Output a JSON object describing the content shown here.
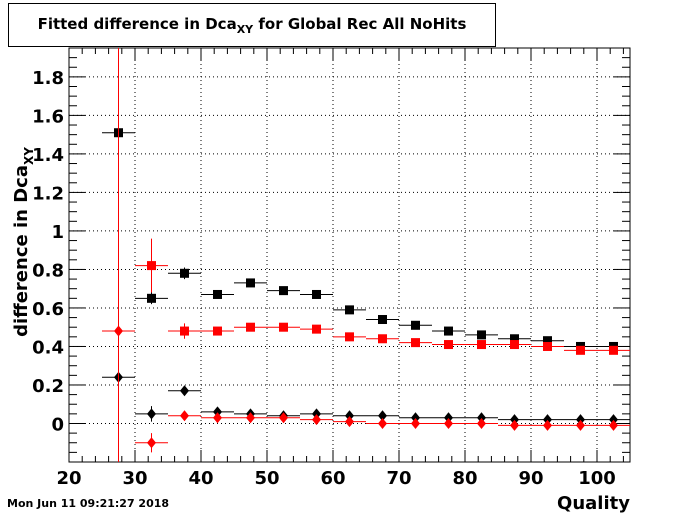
{
  "title": {
    "main": "Fitted difference in Dca",
    "sub": "XY",
    "rest": " for Global Rec All NoHits"
  },
  "timestamp": "Mon Jun 11 09:21:27 2018",
  "colors": {
    "black": "#000000",
    "red": "#ff0000"
  },
  "chart_data": {
    "type": "scatter",
    "xlabel": "Quality",
    "ylabel": "difference in Dca",
    "ylabel_sub": "XY",
    "xlim": [
      20,
      105
    ],
    "ylim": [
      -0.2,
      1.95
    ],
    "xticks": [
      20,
      30,
      40,
      50,
      60,
      70,
      80,
      90,
      100
    ],
    "yticks": [
      0,
      0.2,
      0.4,
      0.6,
      0.8,
      1,
      1.2,
      1.4,
      1.6,
      1.8
    ],
    "grid": true,
    "series": [
      {
        "color": "#000000",
        "marker": "square",
        "points": [
          {
            "x": 27.5,
            "y": 1.51,
            "err": 0
          },
          {
            "x": 32.5,
            "y": 0.65,
            "err": 0.03
          },
          {
            "x": 37.5,
            "y": 0.78,
            "err": 0.03
          },
          {
            "x": 42.5,
            "y": 0.67,
            "err": 0.02
          },
          {
            "x": 47.5,
            "y": 0.73,
            "err": 0.015
          },
          {
            "x": 52.5,
            "y": 0.69,
            "err": 0.01
          },
          {
            "x": 57.5,
            "y": 0.67,
            "err": 0.01
          },
          {
            "x": 62.5,
            "y": 0.59,
            "err": 0.01
          },
          {
            "x": 67.5,
            "y": 0.54,
            "err": 0.01
          },
          {
            "x": 72.5,
            "y": 0.51,
            "err": 0.01
          },
          {
            "x": 77.5,
            "y": 0.48,
            "err": 0.01
          },
          {
            "x": 82.5,
            "y": 0.46,
            "err": 0.01
          },
          {
            "x": 87.5,
            "y": 0.44,
            "err": 0.01
          },
          {
            "x": 92.5,
            "y": 0.43,
            "err": 0.01
          },
          {
            "x": 97.5,
            "y": 0.4,
            "err": 0.01
          },
          {
            "x": 102.5,
            "y": 0.4,
            "err": 0.01
          }
        ]
      },
      {
        "color": "#ff0000",
        "marker": "square",
        "points": [
          {
            "x": 32.5,
            "y": 0.82,
            "err": 0.14
          },
          {
            "x": 37.5,
            "y": 0.48,
            "err": 0.04
          },
          {
            "x": 42.5,
            "y": 0.48,
            "err": 0.02
          },
          {
            "x": 47.5,
            "y": 0.5,
            "err": 0.015
          },
          {
            "x": 52.5,
            "y": 0.5,
            "err": 0.01
          },
          {
            "x": 57.5,
            "y": 0.49,
            "err": 0.01
          },
          {
            "x": 62.5,
            "y": 0.45,
            "err": 0.01
          },
          {
            "x": 67.5,
            "y": 0.44,
            "err": 0.01
          },
          {
            "x": 72.5,
            "y": 0.42,
            "err": 0.01
          },
          {
            "x": 77.5,
            "y": 0.41,
            "err": 0.01
          },
          {
            "x": 82.5,
            "y": 0.41,
            "err": 0.01
          },
          {
            "x": 87.5,
            "y": 0.41,
            "err": 0.01
          },
          {
            "x": 92.5,
            "y": 0.4,
            "err": 0.01
          },
          {
            "x": 97.5,
            "y": 0.38,
            "err": 0.01
          },
          {
            "x": 102.5,
            "y": 0.38,
            "err": 0.01
          }
        ]
      },
      {
        "color": "#000000",
        "marker": "diamond",
        "points": [
          {
            "x": 27.5,
            "y": 0.24,
            "err": 0
          },
          {
            "x": 32.5,
            "y": 0.05,
            "err": 0.04
          },
          {
            "x": 37.5,
            "y": 0.17,
            "err": 0.02
          },
          {
            "x": 42.5,
            "y": 0.06,
            "err": 0.01
          },
          {
            "x": 47.5,
            "y": 0.05,
            "err": 0.01
          },
          {
            "x": 52.5,
            "y": 0.04,
            "err": 0.01
          },
          {
            "x": 57.5,
            "y": 0.05,
            "err": 0.01
          },
          {
            "x": 62.5,
            "y": 0.04,
            "err": 0.01
          },
          {
            "x": 67.5,
            "y": 0.04,
            "err": 0.01
          },
          {
            "x": 72.5,
            "y": 0.03,
            "err": 0.01
          },
          {
            "x": 77.5,
            "y": 0.03,
            "err": 0.01
          },
          {
            "x": 82.5,
            "y": 0.03,
            "err": 0.01
          },
          {
            "x": 87.5,
            "y": 0.02,
            "err": 0.01
          },
          {
            "x": 92.5,
            "y": 0.02,
            "err": 0.01
          },
          {
            "x": 97.5,
            "y": 0.02,
            "err": 0.01
          },
          {
            "x": 102.5,
            "y": 0.02,
            "err": 0.01
          }
        ]
      },
      {
        "color": "#ff0000",
        "marker": "diamond",
        "points": [
          {
            "x": 27.5,
            "y": 0.48,
            "err": 9
          },
          {
            "x": 32.5,
            "y": -0.1,
            "err": 0.05
          },
          {
            "x": 37.5,
            "y": 0.04,
            "err": 0.02
          },
          {
            "x": 42.5,
            "y": 0.03,
            "err": 0.01
          },
          {
            "x": 47.5,
            "y": 0.03,
            "err": 0.01
          },
          {
            "x": 52.5,
            "y": 0.03,
            "err": 0.01
          },
          {
            "x": 57.5,
            "y": 0.02,
            "err": 0.01
          },
          {
            "x": 62.5,
            "y": 0.01,
            "err": 0.01
          },
          {
            "x": 67.5,
            "y": 0.0,
            "err": 0.01
          },
          {
            "x": 72.5,
            "y": 0.0,
            "err": 0.01
          },
          {
            "x": 77.5,
            "y": 0.0,
            "err": 0.01
          },
          {
            "x": 82.5,
            "y": 0.0,
            "err": 0.01
          },
          {
            "x": 87.5,
            "y": -0.01,
            "err": 0.01
          },
          {
            "x": 92.5,
            "y": -0.01,
            "err": 0.01
          },
          {
            "x": 97.5,
            "y": -0.01,
            "err": 0.01
          },
          {
            "x": 102.5,
            "y": -0.01,
            "err": 0.01
          }
        ]
      }
    ],
    "bin_halfwidth": 2.5
  }
}
